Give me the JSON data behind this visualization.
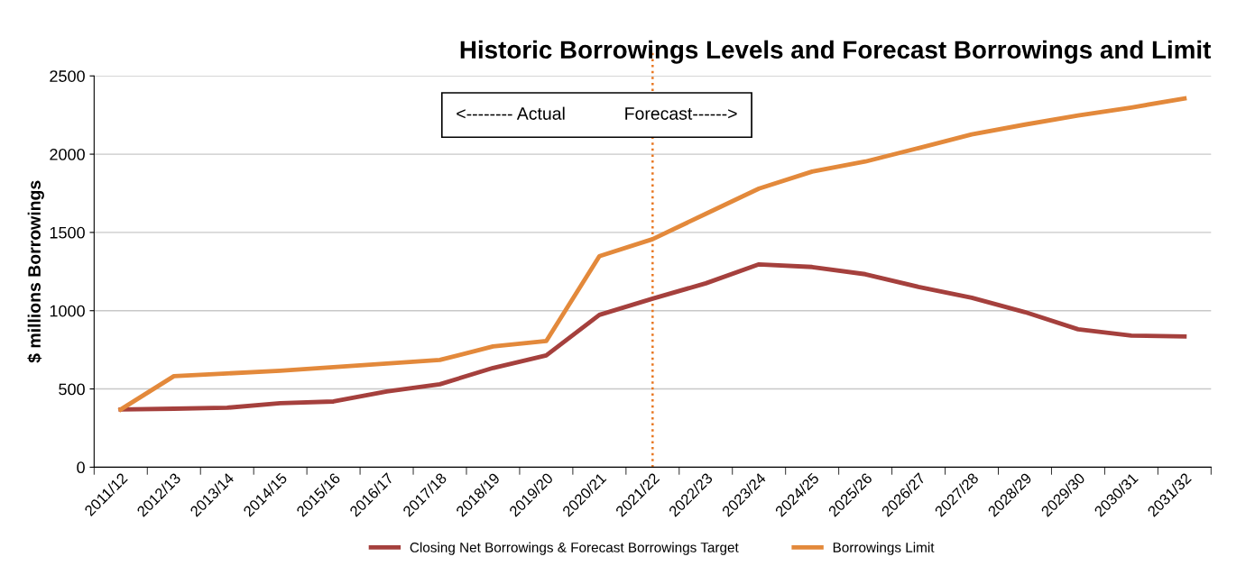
{
  "chart_data": {
    "type": "line",
    "title": "Historic Borrowings Levels and Forecast Borrowings and Limit",
    "ylabel": "$ millions Borrowings",
    "categories": [
      "2011/12",
      "2012/13",
      "2013/14",
      "2014/15",
      "2015/16",
      "2016/17",
      "2017/18",
      "2018/19",
      "2019/20",
      "2020/21",
      "2021/22",
      "2022/23",
      "2023/24",
      "2024/25",
      "2025/26",
      "2026/27",
      "2027/28",
      "2028/29",
      "2029/30",
      "2030/31",
      "2031/32"
    ],
    "series": [
      {
        "name": "Closing Net Borrowings & Forecast Borrowings Target",
        "color": "#a5403d",
        "values": [
          369,
          374,
          380,
          409,
          420,
          484,
          530,
          634,
          714,
          973,
          1077,
          1175,
          1296,
          1279,
          1233,
          1152,
          1083,
          991,
          881,
          841,
          835
        ]
      },
      {
        "name": "Borrowings Limit",
        "color": "#e3893b",
        "values": [
          369,
          582,
          599,
          616,
          639,
          662,
          685,
          772,
          806,
          1348,
          1457,
          1619,
          1780,
          1889,
          1953,
          2039,
          2126,
          2189,
          2247,
          2298,
          2356
        ]
      }
    ],
    "ylim": [
      0,
      2500
    ],
    "yticks": [
      0,
      500,
      1000,
      1500,
      2000,
      2500
    ],
    "grid": "y",
    "legend": "bottom",
    "marker": "none",
    "line_style": "solid",
    "ref_lines": [
      {
        "axis": "x",
        "value": "2021/22",
        "color": "#e87722",
        "line_style": "dotted"
      }
    ],
    "annotations": [
      "<-------- Actual            Forecast------>"
    ]
  }
}
